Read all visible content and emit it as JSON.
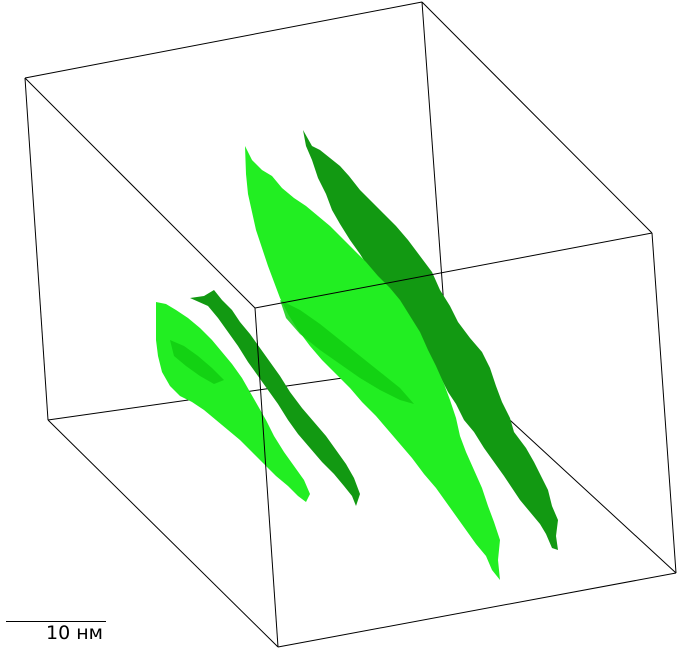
{
  "scale_bar": {
    "label": "10 нм"
  },
  "colors": {
    "background": "#ffffff",
    "box_edges": "#000000",
    "surface_light": "#22ee22",
    "surface_mid": "#11cc11",
    "surface_dark": "#129912"
  }
}
